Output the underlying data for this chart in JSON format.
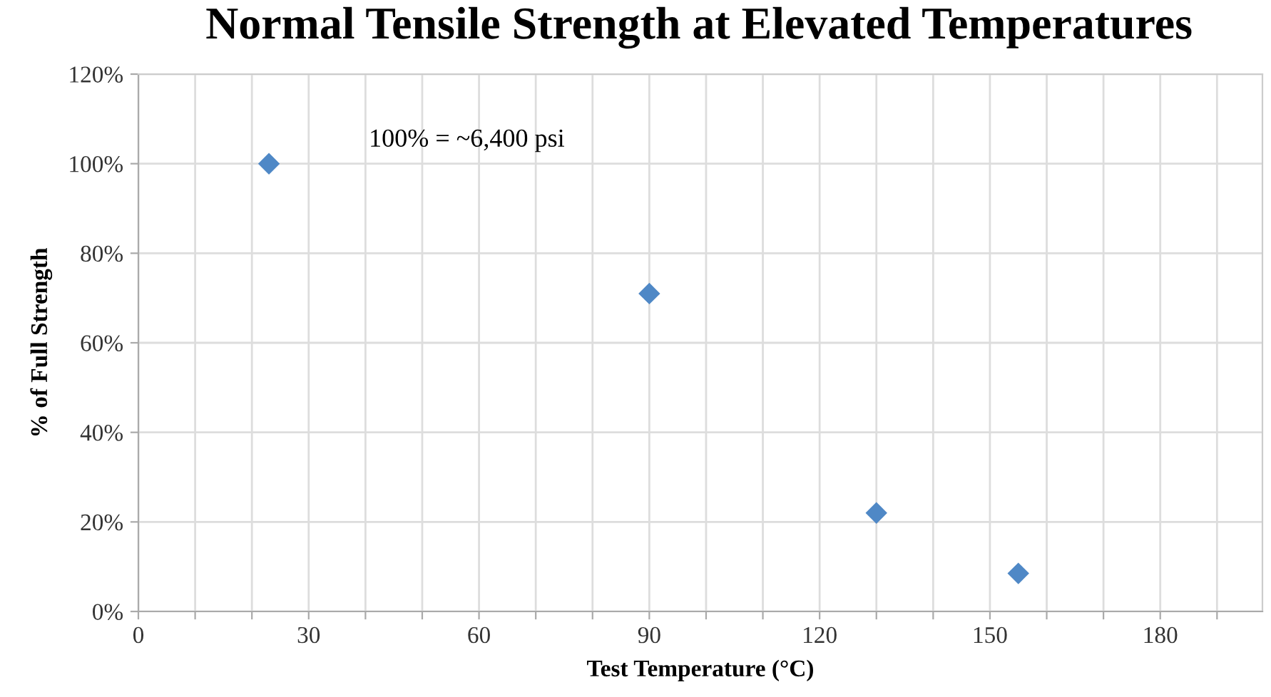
{
  "chart_data": {
    "type": "scatter",
    "title": "Normal Tensile Strength at Elevated Temperatures",
    "xlabel": "Test Temperature (°C)",
    "ylabel": "% of Full Strength",
    "annotations": [
      "100% = ~6,400 psi"
    ],
    "x": [
      23,
      90,
      130,
      155
    ],
    "series": [
      {
        "color": "#4f88c6",
        "values": [
          100,
          71,
          22,
          8.5
        ]
      }
    ],
    "marker": "diamond",
    "xlim": [
      0,
      198
    ],
    "xticks": [
      0,
      {
        "value": 10,
        "label": null
      },
      {
        "value": 20,
        "label": null
      },
      30,
      {
        "value": 40,
        "label": null
      },
      {
        "value": 50,
        "label": null
      },
      60,
      {
        "value": 70,
        "label": null
      },
      {
        "value": 80,
        "label": null
      },
      90,
      {
        "value": 100,
        "label": null
      },
      {
        "value": 110,
        "label": null
      },
      120,
      {
        "value": 130,
        "label": null
      },
      {
        "value": 140,
        "label": null
      },
      150,
      {
        "value": 160,
        "label": null
      },
      {
        "value": 170,
        "label": null
      },
      180,
      {
        "value": 190,
        "label": null
      }
    ],
    "ylim": [
      0,
      120
    ],
    "yticks": [
      {
        "value": 0,
        "label": "0%"
      },
      {
        "value": 20,
        "label": "20%"
      },
      {
        "value": 40,
        "label": "40%"
      },
      {
        "value": 60,
        "label": "60%"
      },
      {
        "value": 80,
        "label": "80%"
      },
      {
        "value": 100,
        "label": "100%"
      },
      {
        "value": 120,
        "label": "120%"
      }
    ],
    "grid": true
  }
}
